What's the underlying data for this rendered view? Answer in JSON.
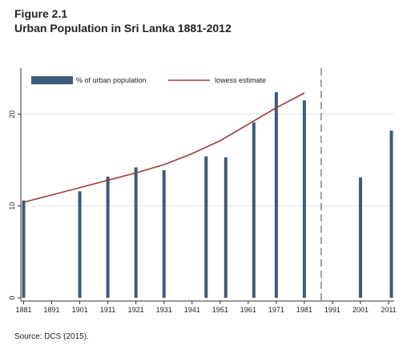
{
  "figure": {
    "label": "Figure 2.1",
    "title": "Urban Population in Sri Lanka 1881-2012",
    "source": "Source: DCS (2015)."
  },
  "chart_data": {
    "type": "bar",
    "title": "Urban Population in Sri Lanka 1881-2012",
    "xlabel": "",
    "ylabel": "",
    "xlim": [
      1880,
      2013
    ],
    "ylim": [
      0,
      25
    ],
    "x_ticks": [
      1881,
      1891,
      1901,
      1911,
      1921,
      1931,
      1941,
      1951,
      1961,
      1971,
      1981,
      1991,
      2001,
      2011
    ],
    "y_ticks": [
      0,
      10,
      20
    ],
    "grid": true,
    "legend_position": "top",
    "reference_line_x": 1987,
    "series": [
      {
        "name": "% of urban population",
        "type": "bar",
        "color": "#3d5a78",
        "x": [
          1881,
          1901,
          1911,
          1921,
          1931,
          1946,
          1953,
          1963,
          1971,
          1981,
          2001,
          2012
        ],
        "values": [
          10.6,
          11.6,
          13.2,
          14.2,
          13.9,
          15.4,
          15.3,
          19.1,
          22.4,
          21.5,
          13.1,
          18.2
        ]
      },
      {
        "name": "lowess estimate",
        "type": "line",
        "color": "#9b3a3a",
        "x": [
          1881,
          1891,
          1901,
          1911,
          1921,
          1931,
          1941,
          1951,
          1961,
          1971,
          1981
        ],
        "values": [
          10.4,
          11.2,
          12.0,
          12.8,
          13.6,
          14.5,
          15.7,
          17.1,
          18.9,
          20.7,
          22.3
        ]
      }
    ]
  }
}
